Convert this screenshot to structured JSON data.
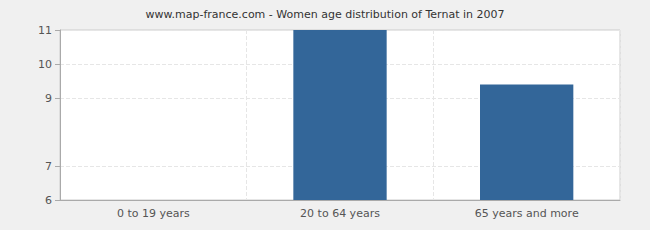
{
  "chart_data": {
    "type": "bar",
    "title": "www.map-france.com - Women age distribution of Ternat in 2007",
    "categories": [
      "0 to 19 years",
      "20 to 64 years",
      "65 years and more"
    ],
    "values": [
      6,
      11,
      9.4
    ],
    "color": "#336699",
    "ylim": [
      6,
      11
    ],
    "yticks": [
      6,
      7,
      9,
      10,
      11
    ],
    "grid": true
  }
}
